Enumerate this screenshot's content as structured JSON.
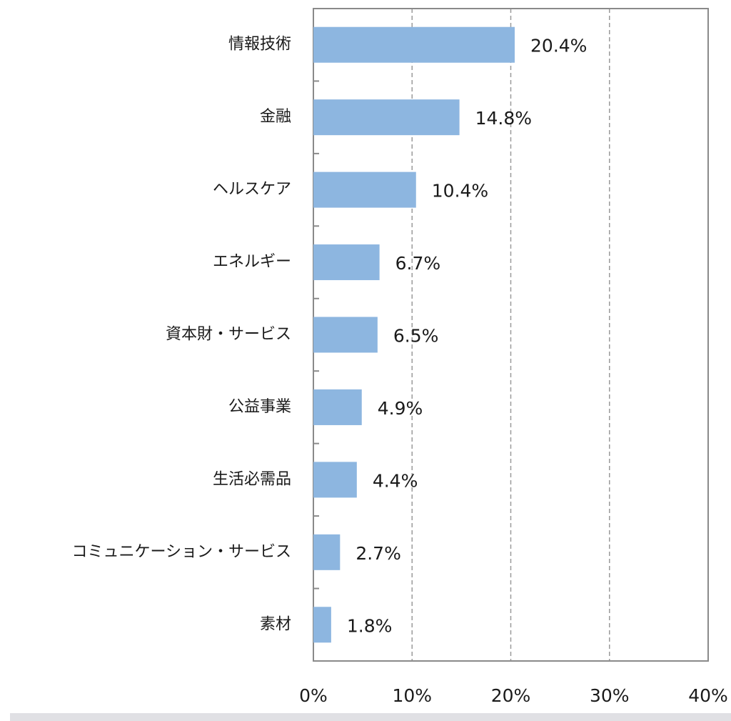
{
  "chart_data": {
    "type": "hbar",
    "categories": [
      "情報技術",
      "金融",
      "ヘルスケア",
      "エネルギー",
      "資本財・サービス",
      "公益事業",
      "生活必需品",
      "コミュニケーション・サービス",
      "素材"
    ],
    "values": [
      20.4,
      14.8,
      10.4,
      6.7,
      6.5,
      4.9,
      4.4,
      2.7,
      1.8
    ],
    "value_labels": [
      "20.4%",
      "14.8%",
      "10.4%",
      "6.7%",
      "6.5%",
      "4.9%",
      "4.4%",
      "2.7%",
      "1.8%"
    ],
    "color": "#8db6e0",
    "xlim": [
      0,
      40
    ],
    "xticks": [
      {
        "value": 0,
        "label": "0%"
      },
      {
        "value": 10,
        "label": "10%"
      },
      {
        "value": 20,
        "label": "20%"
      },
      {
        "value": 30,
        "label": "30%"
      },
      {
        "value": 40,
        "label": "40%"
      }
    ],
    "grid": true
  }
}
